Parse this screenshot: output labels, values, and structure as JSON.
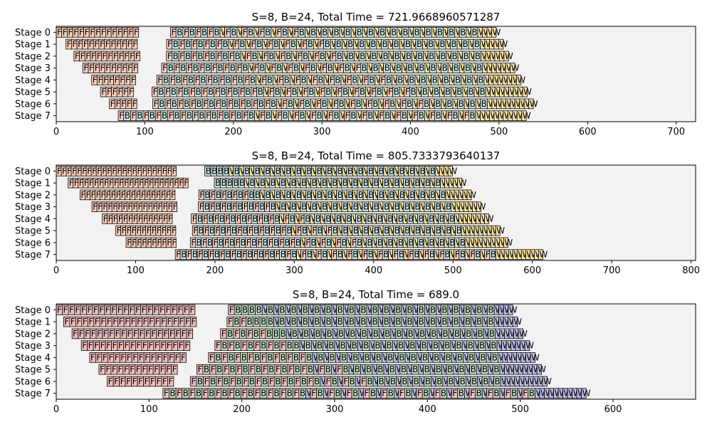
{
  "chart_data": [
    {
      "type": "gantt",
      "title": "S=8, B=24, Total Time = 721.9668960571287",
      "stages": [
        "Stage 0",
        "Stage 1",
        "Stage 2",
        "Stage 3",
        "Stage 4",
        "Stage 5",
        "Stage 6",
        "Stage 7"
      ],
      "xlim": [
        0,
        721.97
      ],
      "x_ticks": [
        0,
        100,
        200,
        300,
        400,
        500,
        600,
        700
      ],
      "stage_starts": [
        0,
        11,
        20,
        30,
        40,
        50,
        60,
        70
      ],
      "warmup_forwards": [
        15,
        13,
        12,
        10,
        8,
        6,
        5,
        0
      ],
      "durations": {
        "F": 6.2,
        "B": 7.8,
        "W": 5.2
      },
      "block_colors": {
        "F": "#fdd0bd",
        "B": "#c8e6e3",
        "W": "#fbe6a6"
      }
    },
    {
      "type": "gantt",
      "title": "S=8, B=24, Total Time = 805.7333793640137",
      "stages": [
        "Stage 0",
        "Stage 1",
        "Stage 2",
        "Stage 3",
        "Stage 4",
        "Stage 5",
        "Stage 6",
        "Stage 7"
      ],
      "xlim": [
        0,
        805.73
      ],
      "x_ticks": [
        0,
        100,
        200,
        300,
        400,
        500,
        600,
        700,
        800
      ],
      "stage_starts": [
        0,
        15,
        30,
        45,
        58,
        75,
        88,
        150
      ],
      "warmup_forwards": [
        24,
        24,
        19,
        17,
        14,
        12,
        10,
        0
      ],
      "durations": {
        "F": 6.3,
        "B": 7.6,
        "W": 5.4
      },
      "block_colors": {
        "F": "#fdd0bd",
        "B": "#c8e6e3",
        "W": "#fbe6a6"
      }
    },
    {
      "type": "gantt",
      "title": "S=8, B=24, Total Time = 689.0",
      "stages": [
        "Stage 0",
        "Stage 1",
        "Stage 2",
        "Stage 3",
        "Stage 4",
        "Stage 5",
        "Stage 6",
        "Stage 7"
      ],
      "xlim": [
        0,
        689.0
      ],
      "x_ticks": [
        0,
        100,
        200,
        300,
        400,
        500,
        600
      ],
      "stage_starts": [
        0,
        8,
        17,
        27,
        36,
        46,
        55,
        115
      ],
      "warmup_forwards": [
        23,
        22,
        20,
        18,
        16,
        13,
        11,
        0
      ],
      "durations": {
        "F": 6.5,
        "B": 7.5,
        "W": 5.0
      },
      "block_colors": {
        "F": "#f2bfbf",
        "B": "#bfdcbf",
        "W": "#c0c0ea"
      }
    }
  ]
}
